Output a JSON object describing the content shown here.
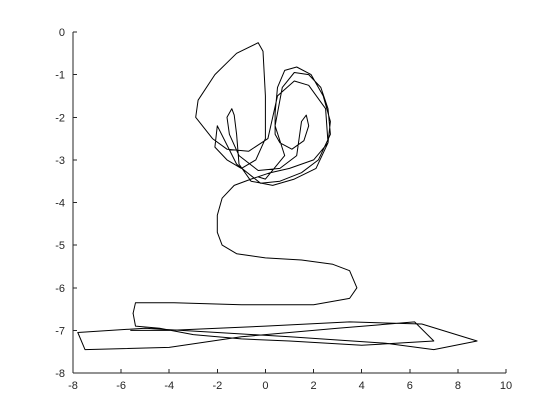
{
  "chart_data": {
    "type": "line",
    "title": "",
    "xlabel": "",
    "ylabel": "",
    "xlim": [
      -8,
      10
    ],
    "ylim": [
      -8,
      0
    ],
    "xticks": [
      -8,
      -6,
      -4,
      -2,
      0,
      2,
      4,
      6,
      8,
      10
    ],
    "yticks": [
      0,
      -1,
      -2,
      -3,
      -4,
      -5,
      -6,
      -7,
      -8
    ],
    "grid": false,
    "colors": {
      "line": "#000000",
      "axis": "#262626",
      "background": "#ffffff"
    },
    "series": [
      {
        "points": [
          [
            -5.5,
            -6.6
          ],
          [
            -5.4,
            -6.9
          ],
          [
            -4.4,
            -6.95
          ],
          [
            -3.0,
            -7.1
          ],
          [
            -1.0,
            -7.2
          ],
          [
            1.0,
            -7.25
          ],
          [
            4.0,
            -7.35
          ],
          [
            7.0,
            -7.25
          ],
          [
            6.2,
            -6.8
          ],
          [
            3.0,
            -6.95
          ],
          [
            -1.0,
            -7.15
          ],
          [
            -4.0,
            -7.4
          ],
          [
            -7.5,
            -7.45
          ],
          [
            -7.8,
            -7.05
          ],
          [
            -5.0,
            -6.95
          ],
          [
            -2.0,
            -7.05
          ],
          [
            1.0,
            -7.15
          ],
          [
            5.0,
            -7.3
          ],
          [
            7.0,
            -7.45
          ],
          [
            8.8,
            -7.25
          ],
          [
            6.5,
            -6.85
          ],
          [
            3.5,
            -6.8
          ],
          [
            0.0,
            -6.9
          ],
          [
            -4.0,
            -7.0
          ],
          [
            -5.6,
            -7.0
          ]
        ]
      },
      {
        "points": [
          [
            -5.5,
            -6.6
          ],
          [
            -5.4,
            -6.35
          ],
          [
            -3.8,
            -6.35
          ],
          [
            -1.0,
            -6.4
          ],
          [
            2.0,
            -6.4
          ],
          [
            3.5,
            -6.25
          ],
          [
            3.8,
            -6.0
          ],
          [
            3.5,
            -5.6
          ],
          [
            2.8,
            -5.45
          ],
          [
            1.5,
            -5.35
          ],
          [
            0.0,
            -5.3
          ],
          [
            -1.2,
            -5.2
          ],
          [
            -1.8,
            -5.0
          ],
          [
            -2.0,
            -4.7
          ],
          [
            -2.0,
            -4.3
          ],
          [
            -1.8,
            -3.9
          ],
          [
            -1.3,
            -3.6
          ],
          [
            -0.6,
            -3.45
          ],
          [
            0.2,
            -3.3
          ],
          [
            1.0,
            -3.2
          ],
          [
            2.0,
            -3.0
          ],
          [
            2.6,
            -2.6
          ],
          [
            2.7,
            -2.1
          ],
          [
            2.4,
            -1.5
          ],
          [
            1.9,
            -1.0
          ],
          [
            1.3,
            -0.82
          ],
          [
            0.8,
            -0.9
          ],
          [
            0.5,
            -1.3
          ],
          [
            0.4,
            -1.9
          ],
          [
            0.4,
            -2.4
          ],
          [
            0.6,
            -2.6
          ],
          [
            1.1,
            -2.75
          ],
          [
            1.6,
            -2.55
          ],
          [
            1.8,
            -2.2
          ],
          [
            1.7,
            -1.95
          ],
          [
            1.5,
            -2.1
          ],
          [
            1.3,
            -2.9
          ],
          [
            0.6,
            -3.2
          ],
          [
            -0.3,
            -3.25
          ],
          [
            -1.1,
            -2.9
          ],
          [
            -1.5,
            -2.4
          ],
          [
            -1.6,
            -2.0
          ],
          [
            -1.4,
            -1.8
          ],
          [
            -1.3,
            -1.95
          ],
          [
            -1.2,
            -2.4
          ],
          [
            -1.1,
            -3.1
          ],
          [
            -0.6,
            -3.5
          ],
          [
            0.3,
            -3.6
          ],
          [
            1.2,
            -3.45
          ],
          [
            2.1,
            -3.2
          ],
          [
            2.6,
            -2.6
          ],
          [
            2.5,
            -1.8
          ],
          [
            1.8,
            -1.25
          ],
          [
            1.2,
            -1.15
          ],
          [
            0.5,
            -1.5
          ],
          [
            0.1,
            -2.5
          ],
          [
            -0.7,
            -2.8
          ],
          [
            -1.6,
            -2.75
          ],
          [
            -2.2,
            -2.5
          ],
          [
            -2.9,
            -2.0
          ],
          [
            -2.8,
            -1.6
          ],
          [
            -2.1,
            -1.0
          ],
          [
            -1.2,
            -0.5
          ],
          [
            -0.3,
            -0.25
          ],
          [
            -0.1,
            -0.45
          ],
          [
            0.0,
            -1.5
          ],
          [
            0.0,
            -2.5
          ],
          [
            -0.4,
            -3.0
          ],
          [
            -1.0,
            -3.2
          ],
          [
            -1.6,
            -3.0
          ],
          [
            -2.1,
            -2.7
          ],
          [
            -2.0,
            -2.2
          ],
          [
            -1.2,
            -3.1
          ],
          [
            -0.2,
            -3.55
          ],
          [
            0.6,
            -3.5
          ],
          [
            1.5,
            -3.3
          ],
          [
            2.2,
            -3.0
          ],
          [
            2.7,
            -2.4
          ],
          [
            2.6,
            -1.8
          ],
          [
            2.3,
            -1.3
          ],
          [
            1.8,
            -1.0
          ],
          [
            1.2,
            -0.95
          ],
          [
            0.7,
            -1.3
          ],
          [
            0.4,
            -2.2
          ],
          [
            0.8,
            -2.9
          ],
          [
            0.0,
            -3.45
          ],
          [
            -0.3,
            -3.4
          ]
        ]
      }
    ]
  }
}
